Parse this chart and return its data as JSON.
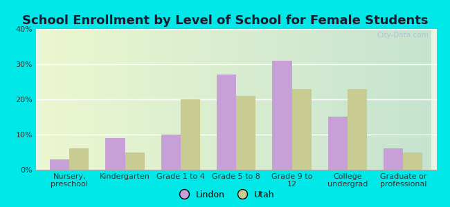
{
  "title": "School Enrollment by Level of School for Female Students",
  "categories": [
    "Nursery,\npreschool",
    "Kindergarten",
    "Grade 1 to 4",
    "Grade 5 to 8",
    "Grade 9 to\n12",
    "College\nundergrad",
    "Graduate or\nprofessional"
  ],
  "lindon": [
    3,
    9,
    10,
    27,
    31,
    15,
    6
  ],
  "utah": [
    6,
    5,
    20,
    21,
    23,
    23,
    5
  ],
  "lindon_color": "#c8a0d8",
  "utah_color": "#c8cc90",
  "background_color": "#00e8e8",
  "plot_bg_color": "#e8f5e2",
  "ylim": [
    0,
    40
  ],
  "yticks": [
    0,
    10,
    20,
    30,
    40
  ],
  "legend_labels": [
    "Lindon",
    "Utah"
  ],
  "bar_width": 0.35,
  "title_fontsize": 13,
  "tick_fontsize": 8,
  "legend_fontsize": 9,
  "watermark": "City-Data.com",
  "watermark_color": "#b0bcd0"
}
